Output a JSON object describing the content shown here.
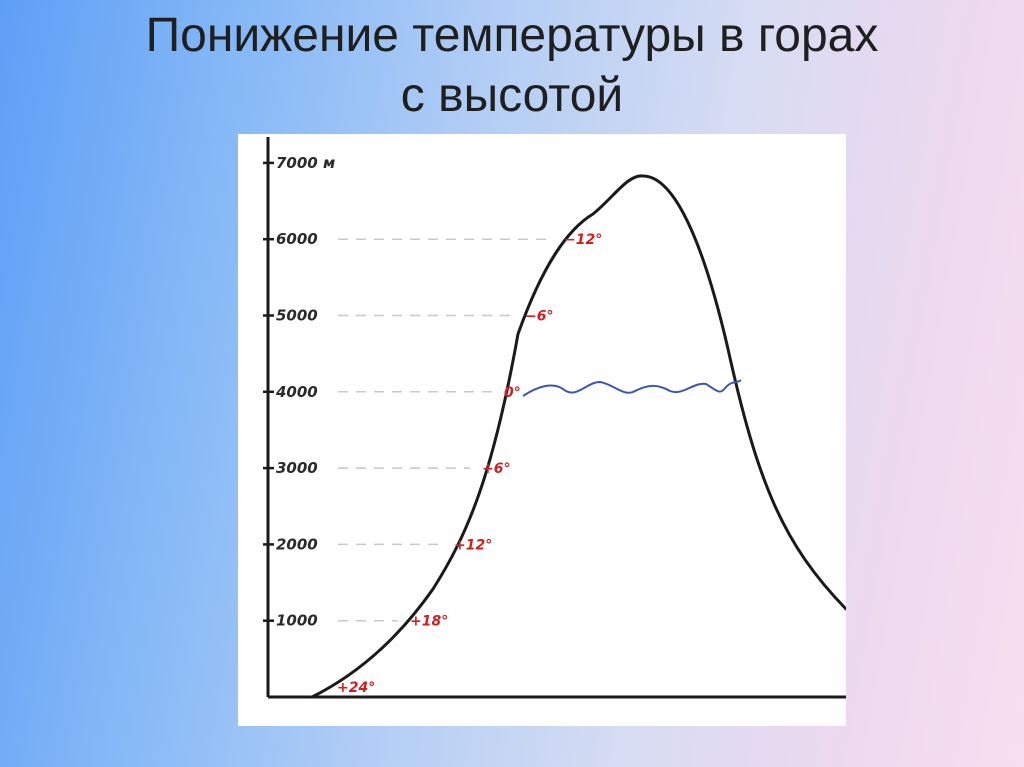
{
  "title": {
    "line1": "Понижение температуры в горах",
    "line2": "с высотой"
  },
  "diagram": {
    "altitude_labels": [
      {
        "value": 7000,
        "text": "7000 м"
      },
      {
        "value": 6000,
        "text": "6000"
      },
      {
        "value": 5000,
        "text": "5000"
      },
      {
        "value": 4000,
        "text": "4000"
      },
      {
        "value": 3000,
        "text": "3000"
      },
      {
        "value": 2000,
        "text": "2000"
      },
      {
        "value": 1000,
        "text": "1000"
      }
    ],
    "temperature_labels": [
      {
        "altitude": 6000,
        "text": "−12°"
      },
      {
        "altitude": 5000,
        "text": "−6°"
      },
      {
        "altitude": 4000,
        "text": "0°"
      },
      {
        "altitude": 3000,
        "text": "+6°"
      },
      {
        "altitude": 2000,
        "text": "+12°"
      },
      {
        "altitude": 1000,
        "text": "+18°"
      },
      {
        "altitude": 0,
        "text": "+24°"
      }
    ],
    "snow_line_altitude": 4000,
    "colors": {
      "mountain_outline": "#1a1a1a",
      "axis": "#1a1a1a",
      "temperature_text": "#d21e1e",
      "snow_line": "#3b56b8",
      "dashed_guides": "#c8c8c8"
    }
  }
}
